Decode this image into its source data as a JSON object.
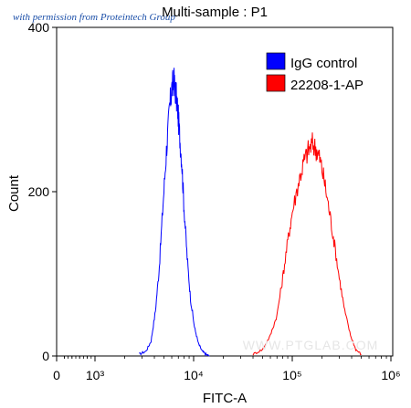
{
  "chart_data": {
    "type": "line",
    "title": "Multi-sample : P1",
    "xlabel": "FITC-A",
    "ylabel": "Count",
    "x_scale": "log",
    "xlim": [
      0,
      1000000
    ],
    "ylim": [
      0,
      400
    ],
    "x_ticks": [
      {
        "value": 0,
        "label": "0"
      },
      {
        "value": 1000,
        "label": "10³"
      },
      {
        "value": 10000,
        "label": "10⁴"
      },
      {
        "value": 100000,
        "label": "10⁵"
      },
      {
        "value": 1000000,
        "label": "10⁶"
      }
    ],
    "y_ticks": [
      {
        "value": 0,
        "label": "0"
      },
      {
        "value": 200,
        "label": "200"
      },
      {
        "value": 400,
        "label": "400"
      }
    ],
    "legend_position": "top-right",
    "grid": false,
    "series": [
      {
        "name": "IgG control",
        "color": "#0000ff",
        "x": [
          2800,
          3300,
          3700,
          4100,
          4500,
          4900,
          5300,
          5700,
          6000,
          6300,
          6600,
          6900,
          7200,
          7600,
          8000,
          8600,
          9300,
          10200,
          11200,
          12200,
          13300,
          14500
        ],
        "y": [
          2,
          6,
          18,
          55,
          110,
          185,
          250,
          300,
          325,
          335,
          320,
          300,
          270,
          235,
          180,
          120,
          70,
          35,
          15,
          6,
          2,
          0
        ]
      },
      {
        "name": "22208-1-AP",
        "color": "#ff0000",
        "x": [
          40000,
          50000,
          60000,
          70000,
          80000,
          90000,
          100000,
          115000,
          130000,
          145000,
          160000,
          175000,
          190000,
          210000,
          235000,
          265000,
          300000,
          340000,
          390000,
          440000,
          500000
        ],
        "y": [
          2,
          8,
          25,
          50,
          95,
          140,
          175,
          210,
          235,
          250,
          258,
          252,
          240,
          215,
          180,
          140,
          95,
          55,
          25,
          8,
          2
        ]
      }
    ]
  },
  "watermark_top": "with permission from Proteintech Group",
  "watermark_center": "WWW.PTGLAB.COM"
}
